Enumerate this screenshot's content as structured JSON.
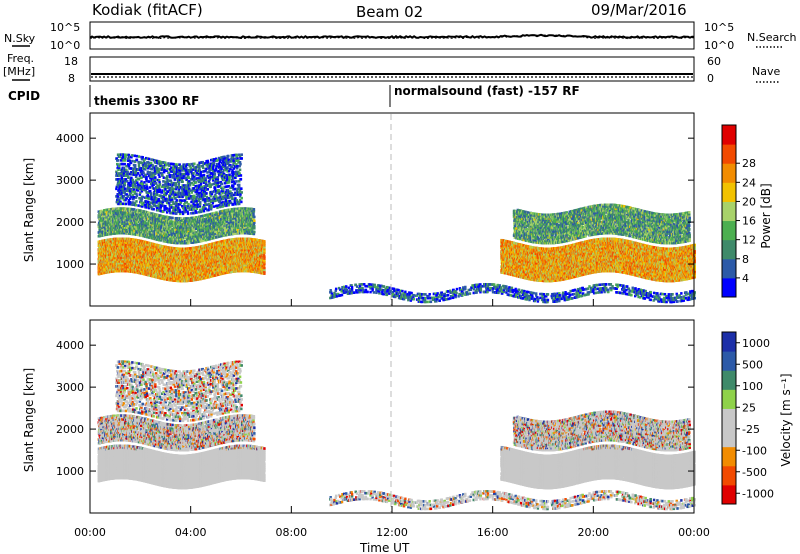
{
  "header": {
    "station": "Kodiak (fitACF)",
    "beam": "Beam 02",
    "date": "09/Mar/2016"
  },
  "summary_panels": {
    "nsky_label": "N.Sky",
    "nsearch_label": "N.Search",
    "noise_ticks": [
      "10^5",
      "10^0"
    ],
    "freq_label": "Freq.",
    "freq_unit": "[MHz]",
    "freq_ticks": [
      "18",
      "8"
    ],
    "nave_label": "Nave",
    "nave_ticks": [
      "60",
      "0"
    ],
    "cpid_label": "CPID",
    "cpid_segments": [
      "themis 3300 RF",
      "normalsound (fast) -157 RF"
    ]
  },
  "colors": {
    "power_scale": [
      "#0000ff",
      "#2c5aa8",
      "#3f8a6a",
      "#4caf50",
      "#a8d26a",
      "#f2c200",
      "#f28c00",
      "#f24a00",
      "#e00000"
    ],
    "velocity_scale": [
      "#e00000",
      "#f24a00",
      "#f28c00",
      "#c8c8c8",
      "#c8c8c8",
      "#8fd24a",
      "#3f8a6a",
      "#2c5aa8",
      "#1c2fa8"
    ],
    "ground_scatter": "#c8c8c8"
  },
  "chart_data": [
    {
      "type": "heatmap",
      "ylabel": "Slant Range [km]",
      "yticks": [
        "1000",
        "2000",
        "3000",
        "4000"
      ],
      "ylim": [
        0,
        4600
      ],
      "colorbar_label": "Power [dB]",
      "colorbar_ticks": [
        "4",
        "8",
        "12",
        "16",
        "20",
        "24",
        "28"
      ],
      "scatter_bands": [
        {
          "t0": 0.3,
          "t1": 6.9,
          "r0": 700,
          "r1": 1500,
          "level": "high"
        },
        {
          "t0": 0.3,
          "t1": 6.5,
          "r0": 1600,
          "r1": 2200,
          "level": "medium"
        },
        {
          "t0": 1.0,
          "t1": 6.0,
          "r0": 2300,
          "r1": 3500,
          "level": "low"
        },
        {
          "t0": 16.3,
          "t1": 24.0,
          "r0": 700,
          "r1": 1500,
          "level": "high"
        },
        {
          "t0": 16.8,
          "t1": 23.8,
          "r0": 1600,
          "r1": 2300,
          "level": "medium"
        },
        {
          "t0": 9.5,
          "t1": 24.0,
          "r0": 200,
          "r1": 400,
          "level": "low"
        }
      ]
    },
    {
      "type": "heatmap",
      "ylabel": "Slant Range [km]",
      "yticks": [
        "1000",
        "2000",
        "3000",
        "4000"
      ],
      "ylim": [
        0,
        4600
      ],
      "xlabel": "Time UT",
      "xticks": [
        "00:00",
        "04:00",
        "08:00",
        "12:00",
        "16:00",
        "20:00",
        "00:00"
      ],
      "xlim": [
        0,
        24
      ],
      "colorbar_label": "Velocity [m s⁻¹]",
      "colorbar_ticks": [
        "1000",
        "500",
        "100",
        "25",
        "-25",
        "-100",
        "-500",
        "-1000"
      ]
    }
  ]
}
